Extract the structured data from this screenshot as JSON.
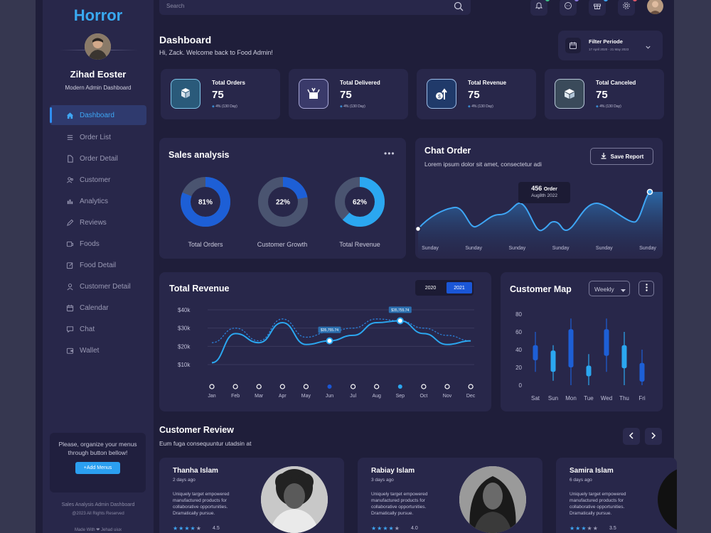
{
  "brand": "Horror",
  "user": {
    "name": "Zihad Eoster",
    "role": "Modern Admin Dashboard"
  },
  "nav": [
    {
      "label": "Dashboard",
      "icon": "home-icon"
    },
    {
      "label": "Order List",
      "icon": "list-icon"
    },
    {
      "label": "Order Detail",
      "icon": "document-icon"
    },
    {
      "label": "Customer",
      "icon": "users-icon"
    },
    {
      "label": "Analytics",
      "icon": "chart-icon"
    },
    {
      "label": "Reviews",
      "icon": "pen-icon"
    },
    {
      "label": "Foods",
      "icon": "food-icon"
    },
    {
      "label": "Food Detail",
      "icon": "edit-icon"
    },
    {
      "label": "Customer Detail",
      "icon": "user-icon"
    },
    {
      "label": "Calendar",
      "icon": "calendar-icon"
    },
    {
      "label": "Chat",
      "icon": "chat-icon"
    },
    {
      "label": "Wallet",
      "icon": "wallet-icon"
    }
  ],
  "promo": {
    "text": "Please, organize your menus through button bellow!",
    "button": "+Add Menus"
  },
  "footer": {
    "line1": "Sales Analysis Admin Dashboard",
    "line2": "@2023 All Rights Reserved",
    "line3": "Made With ❤ Jehad uiux"
  },
  "search": {
    "placeholder": "Search"
  },
  "header": {
    "title": "Dashboard",
    "welcome": "Hi, Zack. Welcome back to Food Admin!"
  },
  "filter": {
    "label": "Filter Periode",
    "range": "17 April 2020 - 21 May 2023"
  },
  "stats": [
    {
      "label": "Total Orders",
      "value": "75",
      "delta": "4% (130 Day)",
      "icon": "cubes-icon"
    },
    {
      "label": "Total Delivered",
      "value": "75",
      "delta": "4% (130 Day)",
      "icon": "box-icon"
    },
    {
      "label": "Total Revenue",
      "value": "75",
      "delta": "4% (130 Day)",
      "icon": "revenue-icon"
    },
    {
      "label": "Total Canceled",
      "value": "75",
      "delta": "4% (130 Day)",
      "icon": "cancel-box-icon"
    }
  ],
  "sales": {
    "title": "Sales analysis",
    "donuts": [
      {
        "label": "Total Orders",
        "value": 81,
        "text": "81%",
        "color": "#1d5fd6"
      },
      {
        "label": "Customer Growth",
        "value": 22,
        "text": "22%",
        "color": "#1d5fd6"
      },
      {
        "label": "Total Revenue",
        "value": 62,
        "text": "62%",
        "color": "#2ba7f0"
      }
    ]
  },
  "chat_order": {
    "title": "Chat Order",
    "subtitle": "Lorem ipsum dolor sit amet, consectetur adi",
    "button": "Save Report",
    "tooltip_value": "456",
    "tooltip_unit": "Order",
    "tooltip_date": "Aug8th 2022",
    "x": [
      "Sunday",
      "Sunday",
      "Sunday",
      "Sunday",
      "Sunday",
      "Sunday"
    ]
  },
  "revenue": {
    "title": "Total Revenue",
    "years": [
      "2020",
      "2021"
    ],
    "active_year": "2021",
    "y_ticks": [
      "$40k",
      "$30k",
      "$20k",
      "$10k"
    ],
    "months": [
      "Jan",
      "Feb",
      "Mar",
      "Apr",
      "May",
      "Jun",
      "Jul",
      "Aug",
      "Sep",
      "Oct",
      "Nov",
      "Dec"
    ],
    "marker_labels": [
      "$35,755.74",
      "$35,755.74"
    ]
  },
  "customer_map": {
    "title": "Customer Map",
    "select": "Weekly",
    "y_ticks": [
      "80",
      "60",
      "40",
      "20",
      "0"
    ],
    "days": [
      "Sat",
      "Sun",
      "Mon",
      "Tue",
      "Wed",
      "Thu",
      "Fri"
    ]
  },
  "reviews": {
    "title": "Customer Review",
    "subtitle": "Eum fuga consequuntur utadsin at",
    "items": [
      {
        "name": "Thanha Islam",
        "date": "2 days ago",
        "text": "Uniquely target empowered manufactured products for collaborative opportunities. Dramatically pursue.",
        "rating": "4.5",
        "stars": 4
      },
      {
        "name": "Rabiay Islam",
        "date": "3 days ago",
        "text": "Uniquely target empowered manufactured products for collaborative opportunities. Dramatically pursue.",
        "rating": "4.0",
        "stars": 4
      },
      {
        "name": "Samira Islam",
        "date": "6 days ago",
        "text": "Uniquely target empowered manufactured products for collaborative opportunities. Dramatically pursue.",
        "rating": "3.5",
        "stars": 3
      }
    ]
  },
  "chart_data": [
    {
      "type": "pie",
      "title": "Sales analysis",
      "categories": [
        "Total Orders",
        "Customer Growth",
        "Total Revenue"
      ],
      "values": [
        81,
        22,
        62
      ]
    },
    {
      "type": "area",
      "title": "Chat Order",
      "x": [
        "Sunday",
        "Sunday",
        "Sunday",
        "Sunday",
        "Sunday",
        "Sunday"
      ],
      "annotations": [
        "456 Order Aug8th 2022"
      ]
    },
    {
      "type": "line",
      "title": "Total Revenue",
      "categories": [
        "Jan",
        "Feb",
        "Mar",
        "Apr",
        "May",
        "Jun",
        "Jul",
        "Aug",
        "Sep",
        "Oct",
        "Nov",
        "Dec"
      ],
      "ylim": [
        10000,
        40000
      ],
      "series": [
        {
          "name": "2021",
          "values": [
            11000,
            27000,
            22000,
            33000,
            21000,
            23000,
            26000,
            33000,
            34000,
            27000,
            21000,
            23000
          ]
        },
        {
          "name": "2020",
          "values": [
            22000,
            30000,
            23000,
            35000,
            25000,
            28000,
            30000,
            35000,
            34000,
            30000,
            26000,
            23000
          ]
        }
      ],
      "annotations": [
        "$35,755.74",
        "$35,755.74"
      ]
    },
    {
      "type": "bar",
      "title": "Customer Map",
      "categories": [
        "Sat",
        "Sun",
        "Mon",
        "Tue",
        "Wed",
        "Thu",
        "Fri"
      ],
      "ylim": [
        0,
        80
      ],
      "ranges": [
        [
          15,
          60
        ],
        [
          5,
          45
        ],
        [
          0,
          75
        ],
        [
          0,
          35
        ],
        [
          15,
          75
        ],
        [
          0,
          60
        ],
        [
          0,
          40
        ]
      ],
      "bodies": [
        [
          28,
          45
        ],
        [
          15,
          39
        ],
        [
          20,
          63
        ],
        [
          10,
          22
        ],
        [
          33,
          63
        ],
        [
          19,
          45
        ],
        [
          4,
          25
        ]
      ],
      "colors": [
        "#1d5fd6",
        "#2ba7f0",
        "#1d5fd6",
        "#2ba7f0",
        "#1d5fd6",
        "#2ba7f0",
        "#1d5fd6"
      ]
    }
  ]
}
